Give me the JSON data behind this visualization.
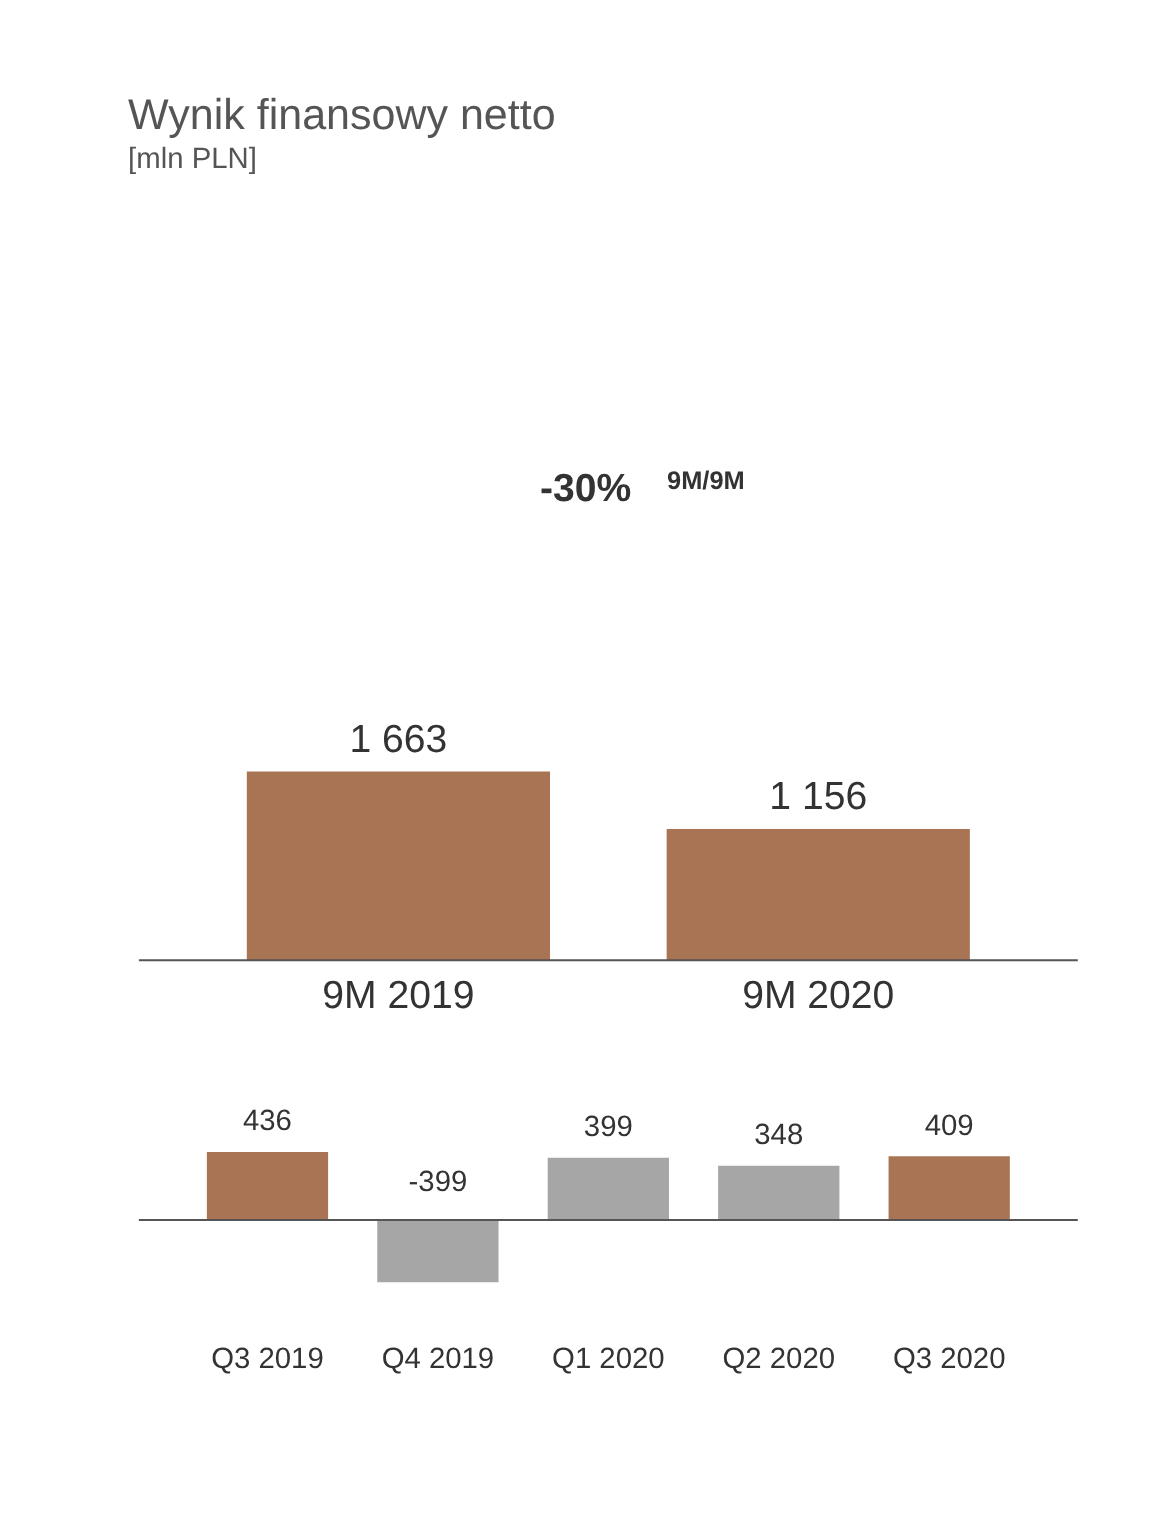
{
  "chart_data": [
    {
      "type": "bar",
      "title": "Wynik finansowy netto",
      "subtitle": "[mln PLN]",
      "annotations": [
        "-30%",
        "9M/9M"
      ],
      "categories": [
        "9M 2019",
        "9M 2020"
      ],
      "values": [
        1663,
        1156
      ],
      "color": "#a87453",
      "value_labels": [
        "1 663",
        "1 156"
      ]
    },
    {
      "type": "bar",
      "categories": [
        "Q3 2019",
        "Q4 2019",
        "Q1 2020",
        "Q2 2020",
        "Q3 2020"
      ],
      "values": [
        436,
        -399,
        399,
        348,
        409
      ],
      "colors": [
        "#a87453",
        "#a6a6a6",
        "#a6a6a6",
        "#a6a6a6",
        "#a87453"
      ],
      "data_labels": true
    }
  ]
}
